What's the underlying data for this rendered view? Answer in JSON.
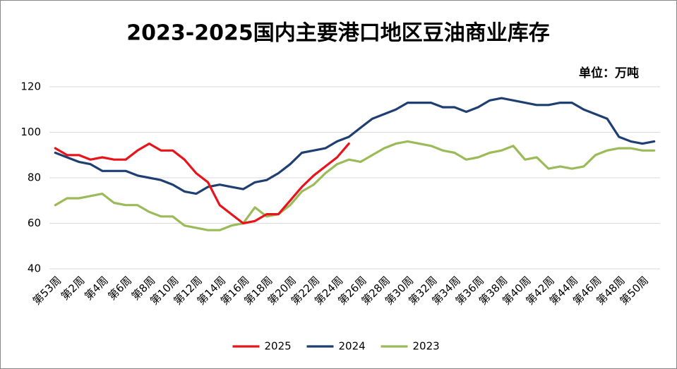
{
  "chart_data": {
    "type": "line",
    "title": "2023-2025国内主要港口地区豆油商业库存",
    "annotation": "单位：万吨",
    "categories": [
      "第53周",
      null,
      "第2周",
      null,
      "第4周",
      null,
      "第6周",
      null,
      "第8周",
      null,
      "第10周",
      null,
      "第12周",
      null,
      "第14周",
      null,
      "第16周",
      null,
      "第18周",
      null,
      "第20周",
      null,
      "第22周",
      null,
      "第24周",
      null,
      "第26周",
      null,
      "第28周",
      null,
      "第30周",
      null,
      "第32周",
      null,
      "第34周",
      null,
      "第36周",
      null,
      "第38周",
      null,
      "第40周",
      null,
      "第42周",
      null,
      "第44周",
      null,
      "第46周",
      null,
      "第48周",
      null,
      "第50周",
      null
    ],
    "series": [
      {
        "name": "2025",
        "color": "#e8141b",
        "values": [
          93,
          90,
          90,
          88,
          89,
          88,
          88,
          92,
          95,
          92,
          92,
          88,
          82,
          78,
          68,
          64,
          60,
          61,
          64,
          64,
          70,
          76,
          81,
          85,
          89,
          95,
          null,
          null,
          null,
          null,
          null,
          null,
          null,
          null,
          null,
          null,
          null,
          null,
          null,
          null,
          null,
          null,
          null,
          null,
          null,
          null,
          null,
          null,
          null,
          null,
          null,
          null
        ]
      },
      {
        "name": "2024",
        "color": "#1f3f73",
        "values": [
          91,
          89,
          87,
          86,
          83,
          83,
          83,
          81,
          80,
          79,
          77,
          74,
          73,
          76,
          77,
          76,
          75,
          78,
          79,
          82,
          86,
          91,
          92,
          93,
          96,
          98,
          102,
          106,
          108,
          110,
          113,
          113,
          113,
          111,
          111,
          109,
          111,
          114,
          115,
          114,
          113,
          112,
          112,
          113,
          113,
          110,
          108,
          106,
          98,
          96,
          95,
          96
        ]
      },
      {
        "name": "2023",
        "color": "#9bbb59",
        "values": [
          68,
          71,
          71,
          72,
          73,
          69,
          68,
          68,
          65,
          63,
          63,
          59,
          58,
          57,
          57,
          59,
          60,
          67,
          63,
          64,
          68,
          74,
          77,
          82,
          86,
          88,
          87,
          90,
          93,
          95,
          96,
          95,
          94,
          92,
          91,
          88,
          89,
          91,
          92,
          94,
          88,
          89,
          84,
          85,
          84,
          85,
          90,
          92,
          93,
          93,
          92,
          92
        ]
      }
    ],
    "ylim": [
      40,
      120
    ],
    "yticks": [
      40,
      60,
      80,
      100,
      120
    ],
    "grid": true,
    "legend": "bottom"
  }
}
